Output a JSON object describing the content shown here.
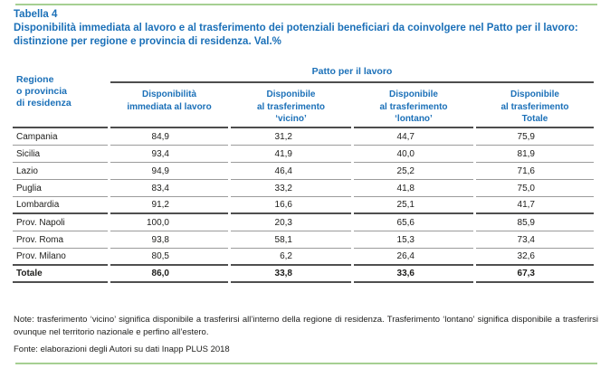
{
  "colors": {
    "title_blue": "#1b70b8",
    "rule_green": "#a6cf92",
    "line_dark": "#4d4d4d",
    "line_gray": "#9b9b9b",
    "text": "#1d1d1b"
  },
  "header": {
    "table_label": "Tabella 4",
    "title": "Disponibilità immediata al lavoro e al trasferimento dei potenziali beneficiari da coinvolgere nel Patto per il lavoro: distinzione per regione e provincia di residenza. Val.%"
  },
  "table": {
    "corner_header": "Regione\no provincia\ndi residenza",
    "group_header": "Patto per il lavoro",
    "col_headers": [
      "Disponibilità\nimmediata al lavoro",
      "Disponibile\nal trasferimento\n‘vicino’",
      "Disponibile\nal trasferimento\n‘lontano’",
      "Disponibile\nal trasferimento\nTotale"
    ],
    "rows": [
      {
        "label": "Campania",
        "values": [
          "84,9",
          "31,2",
          "44,7",
          "75,9"
        ]
      },
      {
        "label": "Sicilia",
        "values": [
          "93,4",
          "41,9",
          "40,0",
          "81,9"
        ]
      },
      {
        "label": "Lazio",
        "values": [
          "94,9",
          "46,4",
          "25,2",
          "71,6"
        ]
      },
      {
        "label": "Puglia",
        "values": [
          "83,4",
          "33,2",
          "41,8",
          "75,0"
        ]
      },
      {
        "label": "Lombardia",
        "values": [
          "91,2",
          "16,6",
          "25,1",
          "41,7"
        ]
      },
      {
        "label": "Prov. Napoli",
        "values": [
          "100,0",
          "20,3",
          "65,6",
          "85,9"
        ]
      },
      {
        "label": "Prov. Roma",
        "values": [
          "93,8",
          "58,1",
          "15,3",
          "73,4"
        ]
      },
      {
        "label": "Prov. Milano",
        "values": [
          "80,5",
          "6,2",
          "26,4",
          "32,6"
        ]
      }
    ],
    "total_row": {
      "label": "Totale",
      "values": [
        "86,0",
        "33,8",
        "33,6",
        "67,3"
      ]
    }
  },
  "footer": {
    "note": "Note: trasferimento ‘vicino’ significa disponibile a trasferirsi all’interno della regione di residenza. Trasferimento ‘lontano’ significa disponibile a trasferirsi ovunque nel territorio nazionale e perfino all’estero.",
    "source": "Fonte: elaborazioni degli Autori su dati Inapp PLUS 2018"
  }
}
